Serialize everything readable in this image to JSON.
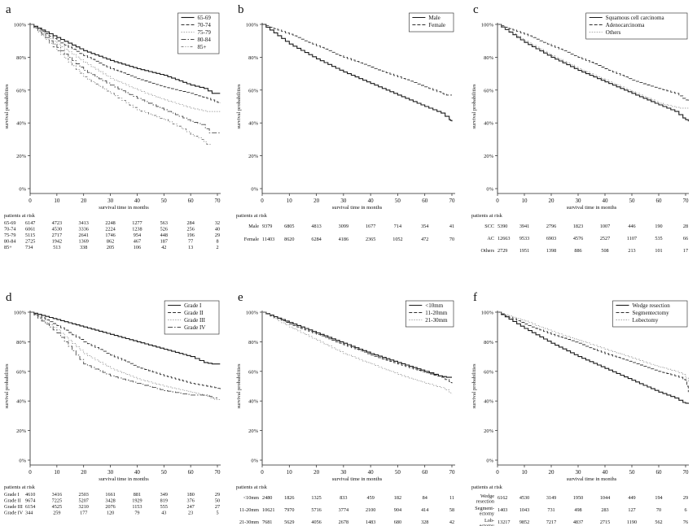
{
  "chart_data": [
    {
      "type": "line",
      "letter": "a",
      "xlabel": "survival time in months",
      "ylabel": "survival probabilities",
      "xlim": [
        0,
        70
      ],
      "ylim": [
        0,
        100
      ],
      "x_ticks": [
        0,
        10,
        20,
        30,
        40,
        50,
        60,
        70
      ],
      "y_ticks": [
        {
          "v": 0,
          "t": "0%"
        },
        {
          "v": 20,
          "t": "20%"
        },
        {
          "v": 40,
          "t": "40%"
        },
        {
          "v": 60,
          "t": "60%"
        },
        {
          "v": 80,
          "t": "80%"
        },
        {
          "v": 100,
          "t": "100%"
        }
      ],
      "legend_position": "top-right",
      "series": [
        {
          "name": "65-69",
          "x": [
            0,
            10,
            20,
            30,
            40,
            50,
            60,
            65,
            68,
            71
          ],
          "y": [
            100,
            92,
            84,
            78,
            73,
            69,
            63,
            61,
            58,
            58
          ]
        },
        {
          "name": "70-74",
          "x": [
            0,
            10,
            20,
            30,
            40,
            50,
            60,
            66,
            69,
            71
          ],
          "y": [
            100,
            90,
            81,
            73,
            67,
            62,
            58,
            55,
            53,
            52
          ]
        },
        {
          "name": "75-79",
          "x": [
            0,
            10,
            20,
            30,
            40,
            50,
            60,
            66,
            69,
            71
          ],
          "y": [
            100,
            88,
            77,
            67,
            60,
            54,
            49,
            47,
            47,
            47
          ]
        },
        {
          "name": "80-84",
          "x": [
            0,
            10,
            20,
            30,
            40,
            50,
            60,
            64,
            67,
            71
          ],
          "y": [
            100,
            86,
            72,
            63,
            55,
            48,
            41,
            39,
            34,
            34
          ]
        },
        {
          "name": "85+",
          "x": [
            0,
            10,
            20,
            30,
            40,
            50,
            55,
            60,
            64,
            66,
            68
          ],
          "y": [
            100,
            84,
            68,
            58,
            48,
            42,
            38,
            33,
            30,
            27,
            27
          ]
        }
      ],
      "risk": {
        "title": "patients at risk",
        "rows": [
          {
            "label": "65-69",
            "first": "6147",
            "values": [
              "4723",
              "3413",
              "2248",
              "1277",
              "563",
              "284",
              "32"
            ]
          },
          {
            "label": "70-74",
            "first": "6061",
            "values": [
              "4530",
              "3336",
              "2224",
              "1238",
              "526",
              "256",
              "40"
            ]
          },
          {
            "label": "75-79",
            "first": "5115",
            "values": [
              "2717",
              "2641",
              "1746",
              "954",
              "448",
              "196",
              "29"
            ]
          },
          {
            "label": "80-84",
            "first": "2725",
            "values": [
              "1942",
              "1369",
              "862",
              "467",
              "187",
              "77",
              "8"
            ]
          },
          {
            "label": "85+",
            "first": "734",
            "values": [
              "513",
              "338",
              "205",
              "106",
              "42",
              "13",
              "2"
            ]
          }
        ]
      }
    },
    {
      "type": "line",
      "letter": "b",
      "xlabel": "survival time in months",
      "ylabel": "survival probabilities",
      "xlim": [
        0,
        70
      ],
      "ylim": [
        0,
        100
      ],
      "x_ticks": [
        0,
        10,
        20,
        30,
        40,
        50,
        60,
        70
      ],
      "y_ticks": [
        {
          "v": 0,
          "t": "0%"
        },
        {
          "v": 20,
          "t": "20%"
        },
        {
          "v": 40,
          "t": "40%"
        },
        {
          "v": 60,
          "t": "60%"
        },
        {
          "v": 80,
          "t": "80%"
        },
        {
          "v": 100,
          "t": "100%"
        }
      ],
      "legend_position": "top-right",
      "series": [
        {
          "name": "Male",
          "x": [
            0,
            10,
            20,
            30,
            40,
            50,
            60,
            66,
            69,
            70
          ],
          "y": [
            100,
            88,
            79,
            71,
            64,
            57,
            50,
            46,
            42,
            41
          ]
        },
        {
          "name": "Female",
          "x": [
            0,
            10,
            20,
            30,
            40,
            50,
            60,
            66,
            68,
            70
          ],
          "y": [
            100,
            94,
            87,
            80,
            74,
            68,
            62,
            58,
            57,
            57
          ]
        }
      ],
      "risk": {
        "title": "patients at risk",
        "rows": [
          {
            "label": "Male",
            "first": "9379",
            "values": [
              "6805",
              "4813",
              "3099",
              "1677",
              "714",
              "354",
              "41"
            ]
          },
          {
            "label": "Female",
            "first": "11403",
            "values": [
              "8620",
              "6284",
              "4186",
              "2365",
              "1052",
              "472",
              "70"
            ]
          }
        ]
      }
    },
    {
      "type": "line",
      "letter": "c",
      "xlabel": "survival time in months",
      "ylabel": "survival probabilities",
      "xlim": [
        0,
        70
      ],
      "ylim": [
        0,
        100
      ],
      "x_ticks": [
        0,
        10,
        20,
        30,
        40,
        50,
        60,
        70
      ],
      "y_ticks": [
        {
          "v": 0,
          "t": "0%"
        },
        {
          "v": 20,
          "t": "20%"
        },
        {
          "v": 40,
          "t": "40%"
        },
        {
          "v": 60,
          "t": "60%"
        },
        {
          "v": 80,
          "t": "80%"
        },
        {
          "v": 100,
          "t": "100%"
        }
      ],
      "legend_position": "top-right",
      "series": [
        {
          "name": "Squamous cell carcinoma",
          "x": [
            0,
            10,
            20,
            30,
            40,
            50,
            60,
            66,
            69,
            71
          ],
          "y": [
            100,
            89,
            80,
            72,
            65,
            58,
            51,
            47,
            43,
            41
          ]
        },
        {
          "name": "Adenocarcinoma",
          "x": [
            0,
            10,
            20,
            30,
            40,
            50,
            60,
            66,
            69,
            71
          ],
          "y": [
            100,
            94,
            87,
            80,
            73,
            66,
            61,
            58,
            55,
            53
          ]
        },
        {
          "name": "Others",
          "x": [
            0,
            10,
            20,
            30,
            40,
            50,
            60,
            65,
            68,
            71
          ],
          "y": [
            100,
            90,
            81,
            73,
            66,
            59,
            52,
            50,
            49,
            49
          ]
        }
      ],
      "risk": {
        "title": "patients at risk",
        "rows": [
          {
            "label": "SCC",
            "first": "5390",
            "values": [
              "3941",
              "2796",
              "1823",
              "1007",
              "446",
              "190",
              "28"
            ]
          },
          {
            "label": "AC",
            "first": "12663",
            "values": [
              "9533",
              "6903",
              "4576",
              "2527",
              "1107",
              "535",
              "66"
            ]
          },
          {
            "label": "Others",
            "first": "2729",
            "values": [
              "1951",
              "1398",
              "886",
              "508",
              "213",
              "101",
              "17"
            ]
          }
        ]
      }
    },
    {
      "type": "line",
      "letter": "d",
      "xlabel": "survival time in months",
      "ylabel": "survival probabilities",
      "xlim": [
        0,
        70
      ],
      "ylim": [
        0,
        100
      ],
      "x_ticks": [
        0,
        10,
        20,
        30,
        40,
        50,
        60,
        70
      ],
      "y_ticks": [
        {
          "v": 0,
          "t": "0%"
        },
        {
          "v": 20,
          "t": "20%"
        },
        {
          "v": 40,
          "t": "40%"
        },
        {
          "v": 60,
          "t": "60%"
        },
        {
          "v": 80,
          "t": "80%"
        },
        {
          "v": 100,
          "t": "100%"
        }
      ],
      "legend_position": "top-right",
      "series": [
        {
          "name": "Grade I",
          "x": [
            0,
            10,
            20,
            30,
            40,
            50,
            60,
            65,
            68,
            71
          ],
          "y": [
            100,
            95,
            90,
            85,
            80,
            75,
            70,
            66,
            65,
            65
          ]
        },
        {
          "name": "Grade II",
          "x": [
            0,
            10,
            20,
            30,
            40,
            50,
            60,
            66,
            69,
            71
          ],
          "y": [
            100,
            91,
            80,
            71,
            63,
            57,
            52,
            50,
            49,
            48
          ]
        },
        {
          "name": "Grade III",
          "x": [
            0,
            10,
            20,
            30,
            40,
            50,
            60,
            66,
            69,
            71
          ],
          "y": [
            100,
            88,
            72,
            62,
            55,
            50,
            46,
            43,
            41,
            41
          ]
        },
        {
          "name": "Grade IV",
          "x": [
            0,
            10,
            20,
            30,
            40,
            50,
            60,
            66,
            68,
            70
          ],
          "y": [
            100,
            86,
            65,
            57,
            52,
            47,
            44,
            44,
            42,
            42
          ]
        }
      ],
      "risk": {
        "title": "patients at risk",
        "rows": [
          {
            "label": "Grade I",
            "first": "4610",
            "values": [
              "3416",
              "2503",
              "1661",
              "881",
              "349",
              "180",
              "29"
            ]
          },
          {
            "label": "Grade II",
            "first": "9674",
            "values": [
              "7225",
              "5207",
              "3428",
              "1929",
              "819",
              "376",
              "50"
            ]
          },
          {
            "label": "Grade III",
            "first": "6154",
            "values": [
              "4525",
              "3210",
              "2076",
              "1153",
              "555",
              "247",
              "27"
            ]
          },
          {
            "label": "Grade IV",
            "first": "344",
            "values": [
              "259",
              "177",
              "120",
              "79",
              "43",
              "23",
              "5"
            ]
          }
        ]
      }
    },
    {
      "type": "line",
      "letter": "e",
      "xlabel": "survival time in months",
      "ylabel": "survival probabilities",
      "xlim": [
        0,
        70
      ],
      "ylim": [
        0,
        100
      ],
      "x_ticks": [
        0,
        10,
        20,
        30,
        40,
        50,
        60,
        70
      ],
      "y_ticks": [
        {
          "v": 0,
          "t": "0%"
        },
        {
          "v": 20,
          "t": "20%"
        },
        {
          "v": 40,
          "t": "40%"
        },
        {
          "v": 60,
          "t": "60%"
        },
        {
          "v": 80,
          "t": "80%"
        },
        {
          "v": 100,
          "t": "100%"
        }
      ],
      "legend_position": "top-right",
      "series": [
        {
          "name": "<10mm",
          "x": [
            0,
            10,
            20,
            30,
            40,
            50,
            60,
            65,
            68,
            70
          ],
          "y": [
            100,
            93,
            86,
            79,
            72,
            66,
            60,
            57,
            56,
            56
          ]
        },
        {
          "name": "11-20mm",
          "x": [
            0,
            10,
            20,
            30,
            40,
            50,
            60,
            66,
            69,
            70
          ],
          "y": [
            100,
            92,
            85,
            78,
            71,
            65,
            59,
            56,
            53,
            52
          ]
        },
        {
          "name": "21-30mm",
          "x": [
            0,
            10,
            20,
            30,
            40,
            50,
            60,
            66,
            69,
            70
          ],
          "y": [
            100,
            90,
            81,
            72,
            65,
            58,
            52,
            49,
            46,
            45
          ]
        }
      ],
      "risk": {
        "title": "patients at risk",
        "rows": [
          {
            "label": "<10mm",
            "first": "2480",
            "values": [
              "1826",
              "1325",
              "833",
              "459",
              "182",
              "84",
              "11"
            ]
          },
          {
            "label": "11-20mm",
            "first": "10621",
            "values": [
              "7970",
              "5716",
              "3774",
              "2100",
              "904",
              "414",
              "58"
            ]
          },
          {
            "label": "21-30mm",
            "first": "7681",
            "values": [
              "5629",
              "4056",
              "2678",
              "1483",
              "680",
              "328",
              "42"
            ]
          }
        ]
      }
    },
    {
      "type": "line",
      "letter": "f",
      "xlabel": "survival time in months",
      "ylabel": "survival probabilities",
      "xlim": [
        0,
        70
      ],
      "ylim": [
        0,
        100
      ],
      "x_ticks": [
        0,
        10,
        20,
        30,
        40,
        50,
        60,
        70
      ],
      "y_ticks": [
        {
          "v": 0,
          "t": "0%"
        },
        {
          "v": 20,
          "t": "20%"
        },
        {
          "v": 40,
          "t": "40%"
        },
        {
          "v": 60,
          "t": "60%"
        },
        {
          "v": 80,
          "t": "80%"
        },
        {
          "v": 100,
          "t": "100%"
        }
      ],
      "legend_position": "top-right",
      "series": [
        {
          "name": "Wedge resection",
          "x": [
            0,
            10,
            20,
            30,
            40,
            50,
            60,
            66,
            69,
            71
          ],
          "y": [
            100,
            89,
            79,
            70,
            62,
            54,
            46,
            42,
            39,
            38
          ]
        },
        {
          "name": "Segmentectomy",
          "x": [
            0,
            10,
            20,
            30,
            40,
            50,
            60,
            66,
            69,
            70,
            71
          ],
          "y": [
            100,
            92,
            85,
            79,
            72,
            66,
            60,
            57,
            55,
            54,
            46
          ]
        },
        {
          "name": "Lobectomy",
          "x": [
            0,
            10,
            20,
            30,
            40,
            50,
            60,
            66,
            69,
            71
          ],
          "y": [
            100,
            94,
            87,
            81,
            75,
            69,
            63,
            60,
            58,
            53
          ]
        }
      ],
      "risk": {
        "title": "patients at risk",
        "rows": [
          {
            "label": "Wedge resection",
            "label_lines": [
              "Wedge",
              "resection"
            ],
            "first": "6162",
            "values": [
              "4530",
              "3149",
              "1950",
              "1044",
              "449",
              "194",
              "29"
            ]
          },
          {
            "label": "Segmentectomy",
            "label_lines": [
              "Segment-",
              "ectomy"
            ],
            "first": "1403",
            "values": [
              "1043",
              "731",
              "498",
              "283",
              "127",
              "70",
              "6"
            ]
          },
          {
            "label": "Lobectomy",
            "label_lines": [
              "Lob-",
              "ectomy"
            ],
            "first": "13217",
            "values": [
              "9852",
              "7217",
              "4837",
              "2715",
              "1190",
              "562",
              "76"
            ]
          }
        ]
      }
    }
  ],
  "colors": {
    "series": [
      "#1a1a1a",
      "#2e2e2e",
      "#8a8a8a",
      "#4a4a4a",
      "#5a5a5a"
    ],
    "axis": "#222222"
  }
}
